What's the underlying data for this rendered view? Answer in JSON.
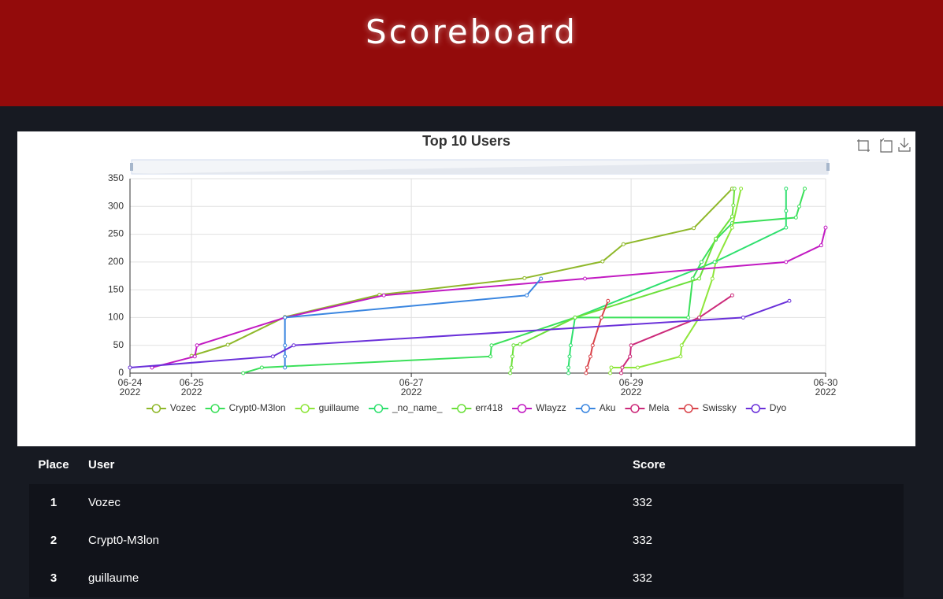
{
  "header": {
    "title": "Scoreboard"
  },
  "chart_data": {
    "type": "line",
    "title": "Top 10 Users",
    "grid": true,
    "xlim": [
      24.44,
      30.77
    ],
    "xticks": [
      {
        "value": 24.44,
        "label": "06-24\n2022"
      },
      {
        "value": 25,
        "label": "06-25\n2022"
      },
      {
        "value": 27,
        "label": "06-27\n2022"
      },
      {
        "value": 29,
        "label": "06-29\n2022"
      },
      {
        "value": 30.77,
        "label": "06-30\n2022"
      }
    ],
    "ylim": [
      0,
      350
    ],
    "yticks": [
      0,
      50,
      100,
      150,
      200,
      250,
      300,
      350
    ],
    "series": [
      {
        "name": "Vozec",
        "color": "#8fb82a",
        "x": [
          25.0,
          25.33,
          25.85,
          26.71,
          28.03,
          28.74,
          28.93,
          29.57,
          29.92
        ],
        "values": [
          31,
          51,
          101,
          141,
          171,
          201,
          232,
          261,
          332
        ]
      },
      {
        "name": "Crypt0-M3lon",
        "color": "#3be05a",
        "x": [
          25.47,
          25.64,
          27.72,
          27.73,
          28.49,
          29.52,
          29.56,
          29.64,
          29.77,
          29.92,
          30.5,
          30.53,
          30.58
        ],
        "values": [
          0,
          10,
          30,
          50,
          100,
          100,
          170,
          200,
          240,
          270,
          280,
          300,
          332
        ]
      },
      {
        "name": "guillaume",
        "color": "#8ee63a",
        "x": [
          28.81,
          28.82,
          29.06,
          29.45,
          29.46,
          29.62,
          29.74,
          29.77,
          29.92,
          30.0
        ],
        "values": [
          0,
          10,
          10,
          30,
          50,
          100,
          170,
          200,
          262,
          332
        ]
      },
      {
        "name": "_no_name_",
        "color": "#2ee06e",
        "x": [
          28.43,
          28.43,
          28.44,
          28.45,
          28.49,
          29.76,
          30.41,
          30.41,
          30.41
        ],
        "values": [
          0,
          10,
          30,
          50,
          100,
          200,
          262,
          292,
          332
        ]
      },
      {
        "name": "err418",
        "color": "#6be03a",
        "x": [
          27.9,
          27.91,
          27.92,
          27.93,
          27.99,
          28.49,
          29.62,
          29.77,
          29.92,
          29.93,
          29.94
        ],
        "values": [
          0,
          10,
          30,
          50,
          52,
          100,
          170,
          242,
          282,
          302,
          332
        ]
      },
      {
        "name": "Wlayzz",
        "color": "#c21ac2",
        "x": [
          24.64,
          25.03,
          25.05,
          25.85,
          26.75,
          28.58,
          30.41,
          30.73,
          30.77
        ],
        "values": [
          10,
          30,
          50,
          100,
          140,
          170,
          200,
          230,
          262
        ]
      },
      {
        "name": "Aku",
        "color": "#3a86e0",
        "x": [
          25.85,
          25.85,
          25.85,
          25.85,
          28.05,
          28.18
        ],
        "values": [
          10,
          30,
          50,
          100,
          140,
          170
        ]
      },
      {
        "name": "Mela",
        "color": "#cc2a7a",
        "x": [
          28.91,
          28.92,
          28.99,
          29.0,
          29.62,
          29.92
        ],
        "values": [
          0,
          10,
          30,
          50,
          100,
          140
        ]
      },
      {
        "name": "Swissky",
        "color": "#d9434a",
        "x": [
          28.59,
          28.6,
          28.63,
          28.65,
          28.73,
          28.79
        ],
        "values": [
          0,
          10,
          30,
          50,
          100,
          130
        ]
      },
      {
        "name": "Dyo",
        "color": "#6a30d9",
        "x": [
          24.44,
          25.74,
          25.93,
          30.02,
          30.44
        ],
        "values": [
          10,
          30,
          50,
          100,
          130
        ]
      }
    ]
  },
  "table": {
    "columns": [
      "Place",
      "User",
      "Score"
    ],
    "rows": [
      [
        "1",
        "Vozec",
        "332"
      ],
      [
        "2",
        "Crypt0-M3lon",
        "332"
      ],
      [
        "3",
        "guillaume",
        "332"
      ]
    ]
  }
}
